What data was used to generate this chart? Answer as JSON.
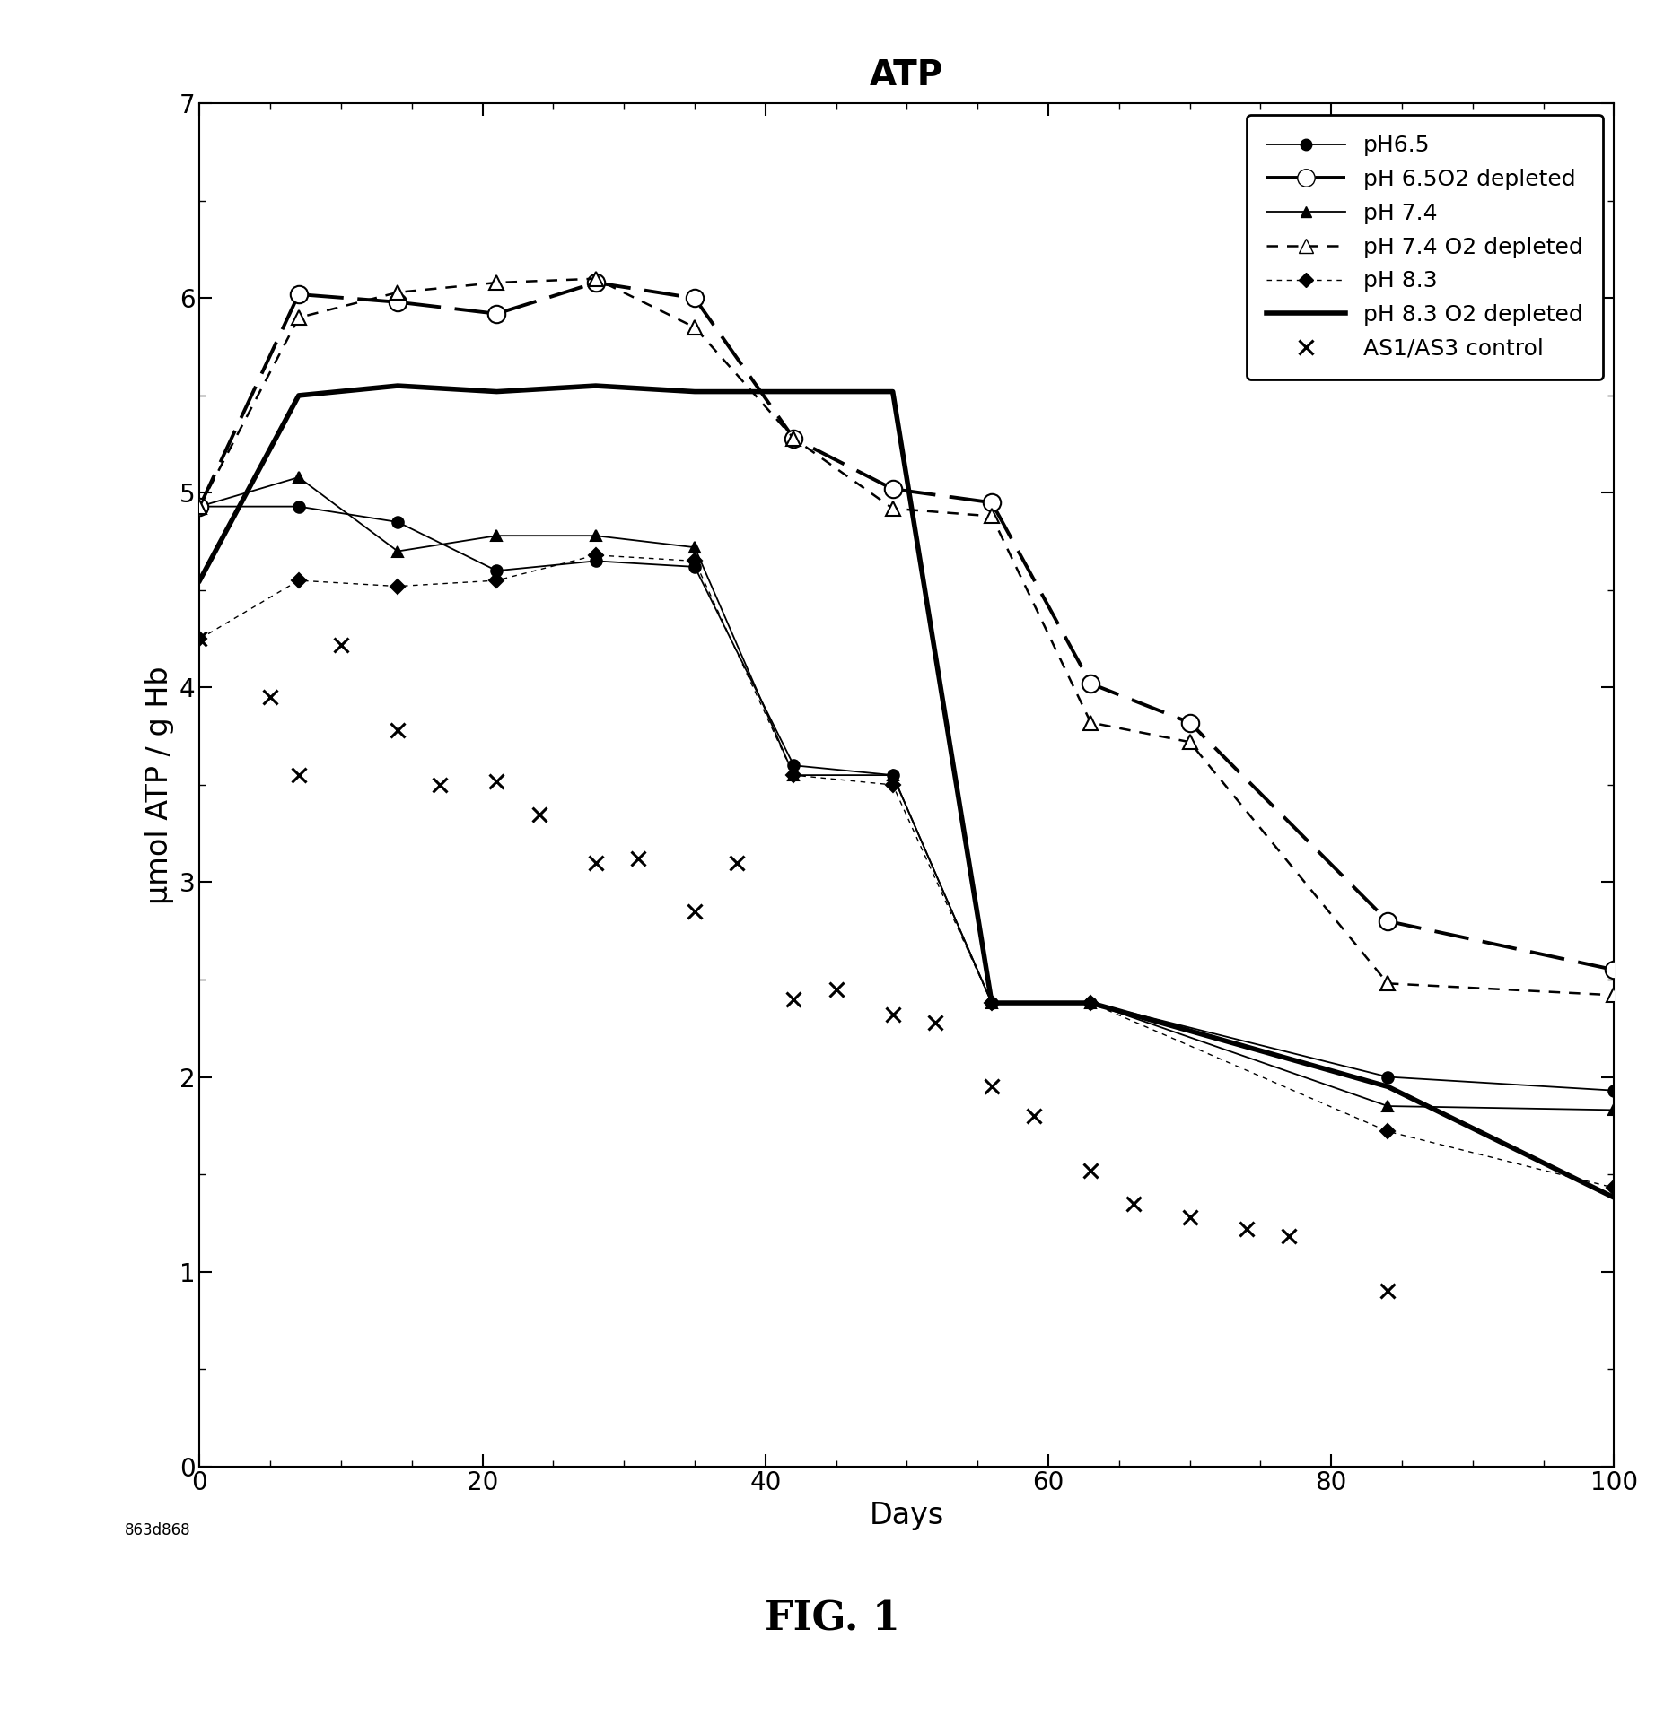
{
  "title": "ATP",
  "xlabel": "Days",
  "ylabel": "μmol ATP / g Hb",
  "fig_caption": "FIG. 1",
  "watermark": "863d868",
  "xlim": [
    0,
    100
  ],
  "ylim": [
    0,
    7
  ],
  "xticks": [
    0,
    20,
    40,
    60,
    80,
    100
  ],
  "yticks": [
    0,
    1,
    2,
    3,
    4,
    5,
    6,
    7
  ],
  "series": {
    "ph65": {
      "label": "pH6.5",
      "x": [
        0,
        7,
        14,
        21,
        28,
        35,
        42,
        49,
        56,
        63,
        84,
        100
      ],
      "y": [
        4.93,
        4.93,
        4.85,
        4.6,
        4.65,
        4.62,
        3.6,
        3.55,
        2.38,
        2.38,
        2.0,
        1.93
      ],
      "linestyle": "-",
      "linewidth": 1.3,
      "marker": "o",
      "markersize": 9,
      "markerfacecolor": "black",
      "markeredgecolor": "black",
      "color": "black",
      "dashes": null
    },
    "ph65_O2": {
      "label": "pH 6.5O2 depleted",
      "x": [
        0,
        7,
        14,
        21,
        28,
        35,
        42,
        49,
        56,
        63,
        70,
        84,
        100
      ],
      "y": [
        4.93,
        6.02,
        5.98,
        5.92,
        6.08,
        6.0,
        5.28,
        5.02,
        4.95,
        4.02,
        3.82,
        2.8,
        2.55
      ],
      "linestyle": "--",
      "linewidth": 2.8,
      "marker": "o",
      "markersize": 14,
      "markerfacecolor": "white",
      "markeredgecolor": "black",
      "color": "black",
      "dashes": [
        10,
        4
      ]
    },
    "ph74": {
      "label": "pH 7.4",
      "x": [
        0,
        7,
        14,
        21,
        28,
        35,
        42,
        49,
        56,
        63,
        84,
        100
      ],
      "y": [
        4.93,
        5.08,
        4.7,
        4.78,
        4.78,
        4.72,
        3.55,
        3.55,
        2.38,
        2.38,
        1.85,
        1.83
      ],
      "linestyle": "-",
      "linewidth": 1.3,
      "marker": "^",
      "markersize": 9,
      "markerfacecolor": "black",
      "markeredgecolor": "black",
      "color": "black",
      "dashes": null
    },
    "ph74_O2": {
      "label": "pH 7.4 O2 depleted",
      "x": [
        0,
        7,
        14,
        21,
        28,
        35,
        42,
        49,
        56,
        63,
        70,
        84,
        100
      ],
      "y": [
        4.93,
        5.9,
        6.03,
        6.08,
        6.1,
        5.85,
        5.28,
        4.92,
        4.88,
        3.82,
        3.72,
        2.48,
        2.42
      ],
      "linestyle": "--",
      "linewidth": 1.8,
      "marker": "^",
      "markersize": 11,
      "markerfacecolor": "white",
      "markeredgecolor": "black",
      "color": "black",
      "dashes": [
        5,
        4
      ]
    },
    "ph83": {
      "label": "pH 8.3",
      "x": [
        0,
        7,
        14,
        21,
        28,
        35,
        42,
        49,
        56,
        63,
        84,
        100
      ],
      "y": [
        4.25,
        4.55,
        4.52,
        4.55,
        4.68,
        4.65,
        3.55,
        3.5,
        2.38,
        2.38,
        1.72,
        1.43
      ],
      "linestyle": "--",
      "linewidth": 1.0,
      "marker": "D",
      "markersize": 8,
      "markerfacecolor": "black",
      "markeredgecolor": "black",
      "color": "black",
      "dashes": [
        4,
        4
      ]
    },
    "ph83_O2": {
      "label": "pH 8.3 O2 depleted",
      "x": [
        0,
        7,
        14,
        21,
        28,
        35,
        42,
        49,
        56,
        63,
        84,
        100
      ],
      "y": [
        4.55,
        5.5,
        5.55,
        5.52,
        5.55,
        5.52,
        5.52,
        5.52,
        2.38,
        2.38,
        1.95,
        1.38
      ],
      "linestyle": "-",
      "linewidth": 4.0,
      "marker": null,
      "markersize": 0,
      "markerfacecolor": "black",
      "markeredgecolor": "black",
      "color": "black",
      "dashes": null
    },
    "control": {
      "label": "AS1/AS3 control",
      "x": [
        0,
        5,
        7,
        10,
        14,
        17,
        21,
        24,
        28,
        31,
        35,
        38,
        42,
        45,
        49,
        52,
        56,
        59,
        63,
        66,
        70,
        74,
        77,
        84
      ],
      "y": [
        4.25,
        3.95,
        3.55,
        4.22,
        3.78,
        3.5,
        3.52,
        3.35,
        3.1,
        3.12,
        2.85,
        3.1,
        2.4,
        2.45,
        2.32,
        2.28,
        1.95,
        1.8,
        1.52,
        1.35,
        1.28,
        1.22,
        1.18,
        0.9
      ],
      "linestyle": "none",
      "linewidth": 0,
      "marker": "x",
      "markersize": 11,
      "markerfacecolor": "black",
      "markeredgecolor": "black",
      "color": "black",
      "dashes": null
    }
  }
}
